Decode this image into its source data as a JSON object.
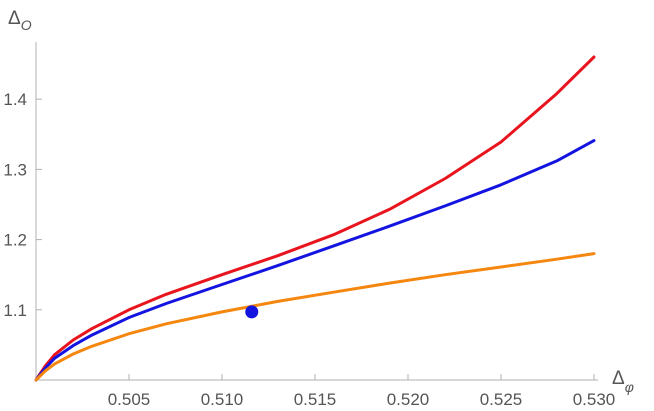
{
  "chart_data": {
    "type": "line",
    "xlabel": "Δ",
    "xlabel_sub": "φ",
    "ylabel": "Δ",
    "ylabel_sub": "O",
    "xlim": [
      0.5,
      0.53
    ],
    "ylim": [
      1.0,
      1.48
    ],
    "x_ticks": [
      "0.505",
      "0.510",
      "0.515",
      "0.520",
      "0.525",
      "0.530"
    ],
    "y_ticks": [
      "1.1",
      "1.2",
      "1.3",
      "1.4"
    ],
    "grid": false,
    "series": [
      {
        "color": "#e8141e",
        "x": [
          0.5,
          0.5005,
          0.501,
          0.502,
          0.503,
          0.505,
          0.507,
          0.51,
          0.513,
          0.516,
          0.519,
          0.522,
          0.525,
          0.528,
          0.53
        ],
        "y": [
          1.0,
          1.02,
          1.036,
          1.057,
          1.073,
          1.1,
          1.122,
          1.15,
          1.177,
          1.207,
          1.243,
          1.287,
          1.339,
          1.408,
          1.46
        ]
      },
      {
        "color": "#1414e0",
        "x": [
          0.5,
          0.5005,
          0.501,
          0.502,
          0.503,
          0.505,
          0.507,
          0.51,
          0.513,
          0.516,
          0.519,
          0.522,
          0.525,
          0.528,
          0.53
        ],
        "y": [
          1.0,
          1.017,
          1.031,
          1.049,
          1.064,
          1.089,
          1.109,
          1.136,
          1.163,
          1.191,
          1.219,
          1.248,
          1.278,
          1.312,
          1.341
        ]
      },
      {
        "color": "#f5870f",
        "x": [
          0.5,
          0.5005,
          0.501,
          0.502,
          0.503,
          0.505,
          0.507,
          0.51,
          0.513,
          0.516,
          0.519,
          0.522,
          0.525,
          0.528,
          0.53
        ],
        "y": [
          1.0,
          1.013,
          1.023,
          1.037,
          1.048,
          1.066,
          1.08,
          1.097,
          1.112,
          1.125,
          1.138,
          1.15,
          1.161,
          1.172,
          1.18
        ]
      }
    ],
    "points": [
      {
        "color": "#1414e0",
        "x": 0.5116,
        "y": 1.097
      }
    ]
  }
}
